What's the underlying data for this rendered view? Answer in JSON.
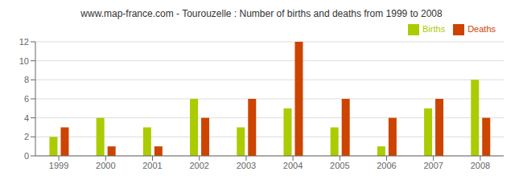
{
  "chart_data": {
    "type": "bar",
    "title": "www.map-france.com - Tourouzelle : Number of births and deaths from 1999 to 2008",
    "categories": [
      "1999",
      "2000",
      "2001",
      "2002",
      "2003",
      "2004",
      "2005",
      "2006",
      "2007",
      "2008"
    ],
    "series": [
      {
        "name": "Births",
        "color": "#aacc00",
        "values": [
          2,
          4,
          3,
          6,
          3,
          5,
          3,
          1,
          5,
          8
        ]
      },
      {
        "name": "Deaths",
        "color": "#cc4400",
        "values": [
          3,
          1,
          1,
          4,
          6,
          12,
          6,
          4,
          6,
          4
        ]
      }
    ],
    "ylim": [
      0,
      12
    ],
    "yticks": [
      0,
      2,
      4,
      6,
      8,
      10,
      12
    ],
    "grid": true,
    "legend": "upper right"
  }
}
